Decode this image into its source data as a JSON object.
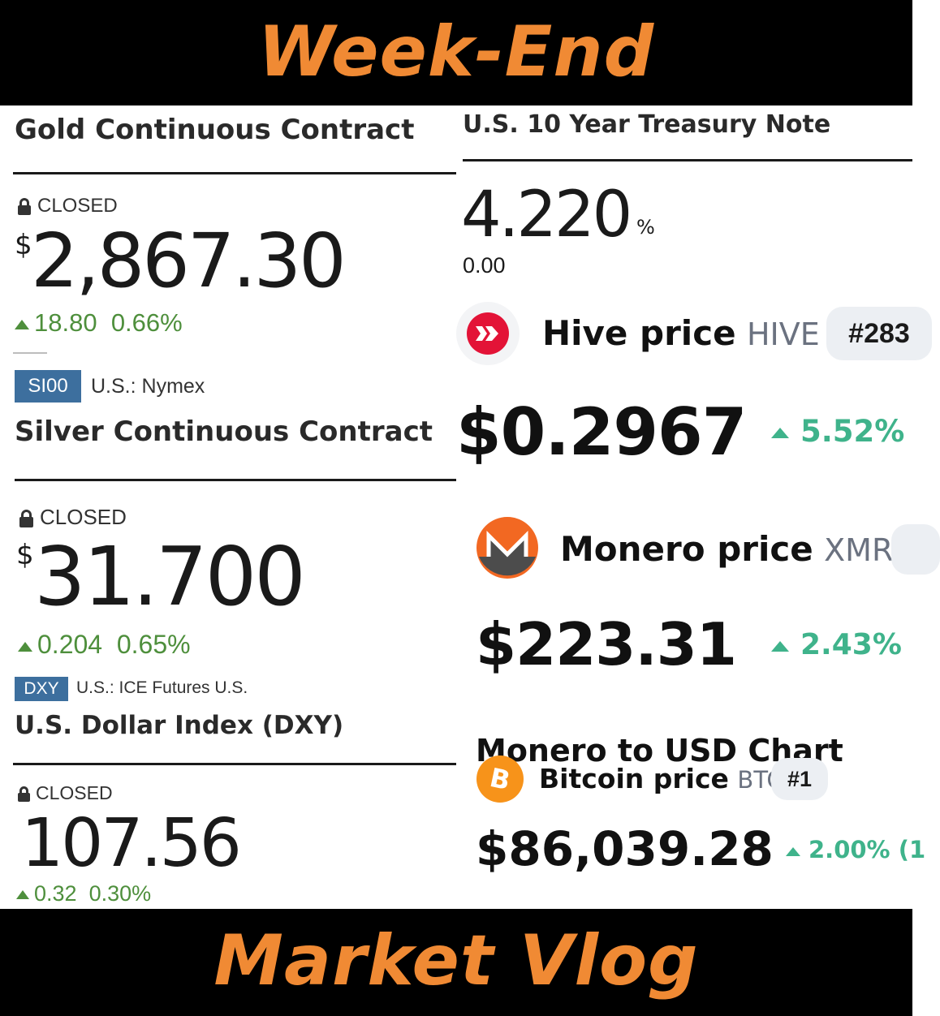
{
  "header": {
    "title": "Week-End"
  },
  "footer": {
    "title": "Market Vlog"
  },
  "gold": {
    "name": "Gold Continuous Contract",
    "status": "CLOSED",
    "currency": "$",
    "price": "2,867.30",
    "change": "18.80",
    "change_pct": "0.66%"
  },
  "silver": {
    "code": "SI00",
    "exchange": "U.S.: Nymex",
    "name": "Silver Continuous Contract",
    "status": "CLOSED",
    "currency": "$",
    "price": "31.700",
    "change": "0.204",
    "change_pct": "0.65%"
  },
  "dxy": {
    "code": "DXY",
    "exchange": "U.S.: ICE Futures U.S.",
    "name": "U.S. Dollar Index (DXY)",
    "status": "CLOSED",
    "price": "107.56",
    "change": "0.32",
    "change_pct": "0.30%"
  },
  "treasury": {
    "name": "U.S. 10 Year Treasury Note",
    "yield": "4.220",
    "unit": "%",
    "change": "0.00"
  },
  "hive": {
    "label": "Hive price",
    "ticker": "HIVE",
    "rank": "#283",
    "price": "$0.2967",
    "change_pct": "5.52%"
  },
  "monero": {
    "label": "Monero price",
    "ticker": "XMR",
    "price": "$223.31",
    "change_pct": "2.43%",
    "partial_text": "Monero to USD Chart"
  },
  "bitcoin": {
    "label": "Bitcoin price",
    "ticker": "BTC",
    "rank": "#1",
    "price": "$86,039.28",
    "change_pct": "2.00% (1"
  },
  "colors": {
    "accent": "#f08a34",
    "up_green": "#4e8f3c",
    "crypto_green": "#3fb38b",
    "tag_blue": "#3d6f9e",
    "hive_red": "#e31337",
    "monero_orange": "#f26822",
    "bitcoin_orange": "#f7931a"
  },
  "icons": [
    "lock-icon",
    "up-triangle-icon",
    "hive-logo-icon",
    "monero-logo-icon",
    "bitcoin-logo-icon"
  ]
}
